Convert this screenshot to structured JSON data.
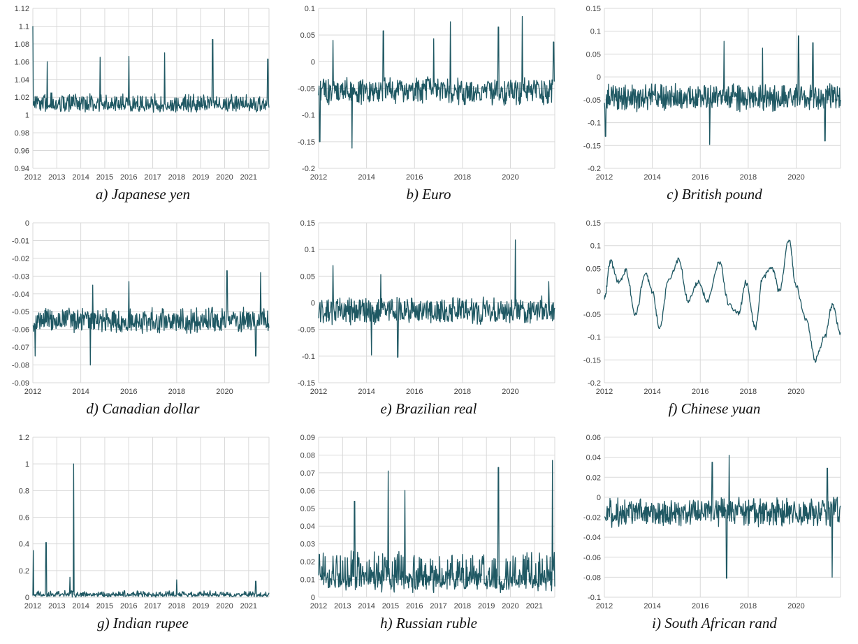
{
  "colors": {
    "series": "#1f5863",
    "grid": "#d9d9d9",
    "text": "#404040"
  },
  "chart_data": [
    {
      "type": "line",
      "caption": "a)   Japanese yen",
      "xticks": [
        "2012",
        "2013",
        "2014",
        "2015",
        "2016",
        "2017",
        "2018",
        "2019",
        "2020",
        "2021"
      ],
      "xlim": [
        2012,
        2021.85
      ],
      "ylim": [
        0.94,
        1.12
      ],
      "yticks": [
        "0.94",
        "0.96",
        "0.98",
        "1",
        "1.02",
        "1.04",
        "1.06",
        "1.08",
        "1.1",
        "1.12"
      ],
      "grid": true,
      "legend": "none",
      "approx": {
        "base": 1.015,
        "noise": 0.008,
        "floor": 1.0,
        "spikes": [
          [
            2012.0,
            1.1
          ],
          [
            2012.6,
            1.06
          ],
          [
            2014.8,
            1.065
          ],
          [
            2016.0,
            1.066
          ],
          [
            2017.5,
            1.07
          ],
          [
            2019.5,
            1.085
          ],
          [
            2021.8,
            1.063
          ]
        ]
      }
    },
    {
      "type": "line",
      "caption": "b) Euro",
      "xticks": [
        "2012",
        "2014",
        "2016",
        "2018",
        "2020"
      ],
      "xlim": [
        2012,
        2021.85
      ],
      "ylim": [
        -0.2,
        0.1
      ],
      "yticks": [
        "-0.2",
        "-0.15",
        "-0.1",
        "-0.05",
        "0",
        "0.05",
        "0.1"
      ],
      "grid": true,
      "legend": "none",
      "approx": {
        "base": -0.055,
        "noise": 0.022,
        "spikes": [
          [
            2012.05,
            -0.15
          ],
          [
            2012.6,
            0.04
          ],
          [
            2013.4,
            -0.162
          ],
          [
            2014.7,
            0.058
          ],
          [
            2016.8,
            0.043
          ],
          [
            2017.5,
            0.075
          ],
          [
            2019.5,
            0.065
          ],
          [
            2020.5,
            0.085
          ],
          [
            2021.8,
            0.037
          ]
        ]
      }
    },
    {
      "type": "line",
      "caption": "c) British pound",
      "xticks": [
        "2012",
        "2014",
        "2016",
        "2018",
        "2020"
      ],
      "xlim": [
        2012,
        2021.85
      ],
      "ylim": [
        -0.2,
        0.15
      ],
      "yticks": [
        "-0.2",
        "-0.15",
        "-0.1",
        "-0.05",
        "0",
        "0.05",
        "0.1",
        "0.15"
      ],
      "grid": true,
      "legend": "none",
      "approx": {
        "base": -0.045,
        "noise": 0.025,
        "spikes": [
          [
            2012.05,
            -0.13
          ],
          [
            2016.4,
            -0.148
          ],
          [
            2017.0,
            0.078
          ],
          [
            2018.6,
            0.063
          ],
          [
            2020.1,
            0.09
          ],
          [
            2020.7,
            0.075
          ],
          [
            2021.2,
            -0.14
          ]
        ]
      }
    },
    {
      "type": "line",
      "caption": "d) Canadian dollar",
      "xticks": [
        "2012",
        "2014",
        "2016",
        "2018",
        "2020"
      ],
      "xlim": [
        2012,
        2021.85
      ],
      "ylim": [
        -0.09,
        0
      ],
      "yticks": [
        "-0.09",
        "-0.08",
        "-0.07",
        "-0.06",
        "-0.05",
        "-0.04",
        "-0.03",
        "-0.02",
        "-0.01",
        "0"
      ],
      "grid": true,
      "legend": "none",
      "approx": {
        "base": -0.055,
        "noise": 0.006,
        "spikes": [
          [
            2012.1,
            -0.075
          ],
          [
            2014.4,
            -0.08
          ],
          [
            2014.5,
            -0.035
          ],
          [
            2016.0,
            -0.033
          ],
          [
            2020.1,
            -0.027
          ],
          [
            2021.3,
            -0.075
          ],
          [
            2021.5,
            -0.028
          ]
        ]
      }
    },
    {
      "type": "line",
      "caption": "e) Brazilian real",
      "xticks": [
        "2012",
        "2014",
        "2016",
        "2018",
        "2020"
      ],
      "xlim": [
        2012,
        2021.85
      ],
      "ylim": [
        -0.15,
        0.15
      ],
      "yticks": [
        "-0.15",
        "-0.1",
        "-0.05",
        "0",
        "0.05",
        "0.1",
        "0.15"
      ],
      "grid": true,
      "legend": "none",
      "approx": {
        "base": -0.015,
        "noise": 0.022,
        "spikes": [
          [
            2012.6,
            0.07
          ],
          [
            2014.2,
            -0.098
          ],
          [
            2014.6,
            0.053
          ],
          [
            2015.3,
            -0.102
          ],
          [
            2020.2,
            0.118
          ],
          [
            2021.6,
            0.04
          ]
        ]
      }
    },
    {
      "type": "line",
      "caption": "f) Chinese yuan",
      "xticks": [
        "2012",
        "2014",
        "2016",
        "2018",
        "2020"
      ],
      "xlim": [
        2012,
        2021.85
      ],
      "ylim": [
        -0.2,
        0.15
      ],
      "yticks": [
        "-0.2",
        "-0.15",
        "-0.1",
        "-0.05",
        "0",
        "0.05",
        "0.1",
        "0.15"
      ],
      "grid": true,
      "legend": "none",
      "approx": {
        "smooth": true,
        "anchors": [
          [
            2012.0,
            -0.015
          ],
          [
            2012.25,
            0.065
          ],
          [
            2012.6,
            0.02
          ],
          [
            2012.9,
            0.045
          ],
          [
            2013.3,
            -0.05
          ],
          [
            2013.7,
            0.04
          ],
          [
            2014.0,
            0.0
          ],
          [
            2014.3,
            -0.08
          ],
          [
            2014.7,
            0.03
          ],
          [
            2015.1,
            0.07
          ],
          [
            2015.5,
            -0.02
          ],
          [
            2015.9,
            0.02
          ],
          [
            2016.3,
            -0.02
          ],
          [
            2016.8,
            0.065
          ],
          [
            2017.2,
            -0.03
          ],
          [
            2017.6,
            -0.05
          ],
          [
            2017.9,
            0.02
          ],
          [
            2018.3,
            -0.08
          ],
          [
            2018.6,
            0.03
          ],
          [
            2019.0,
            0.05
          ],
          [
            2019.3,
            0.0
          ],
          [
            2019.7,
            0.113
          ],
          [
            2020.0,
            0.01
          ],
          [
            2020.4,
            -0.06
          ],
          [
            2020.8,
            -0.15
          ],
          [
            2021.2,
            -0.1
          ],
          [
            2021.5,
            -0.03
          ],
          [
            2021.85,
            -0.09
          ]
        ]
      }
    },
    {
      "type": "line",
      "caption": "g) Indian rupee",
      "xticks": [
        "2012",
        "2013",
        "2014",
        "2015",
        "2016",
        "2017",
        "2018",
        "2019",
        "2020",
        "2021"
      ],
      "xlim": [
        2012,
        2021.85
      ],
      "ylim": [
        0,
        1.2
      ],
      "yticks": [
        "0",
        "0.2",
        "0.4",
        "0.6",
        "0.8",
        "1",
        "1.2"
      ],
      "grid": true,
      "legend": "none",
      "approx": {
        "base": 0.025,
        "noise": 0.02,
        "floor": 0.0,
        "spikes": [
          [
            2012.02,
            0.35
          ],
          [
            2012.55,
            0.41
          ],
          [
            2013.7,
            1.0
          ],
          [
            2013.55,
            0.15
          ],
          [
            2018.0,
            0.13
          ],
          [
            2021.3,
            0.12
          ]
        ]
      }
    },
    {
      "type": "line",
      "caption": "h) Russian ruble",
      "xticks": [
        "2012",
        "2013",
        "2014",
        "2015",
        "2016",
        "2017",
        "2018",
        "2019",
        "2020",
        "2021"
      ],
      "xlim": [
        2012,
        2021.85
      ],
      "ylim": [
        0,
        0.09
      ],
      "yticks": [
        "0",
        "0.01",
        "0.02",
        "0.03",
        "0.04",
        "0.05",
        "0.06",
        "0.07",
        "0.08",
        "0.09"
      ],
      "grid": true,
      "legend": "none",
      "approx": {
        "base": 0.015,
        "noise": 0.009,
        "floor": 0.0,
        "spikes": [
          [
            2013.5,
            0.054
          ],
          [
            2014.9,
            0.071
          ],
          [
            2015.6,
            0.06
          ],
          [
            2019.5,
            0.073
          ],
          [
            2021.75,
            0.077
          ]
        ]
      }
    },
    {
      "type": "line",
      "caption": "i) South African rand",
      "xticks": [
        "2012",
        "2014",
        "2016",
        "2018",
        "2020"
      ],
      "xlim": [
        2012,
        2021.85
      ],
      "ylim": [
        -0.1,
        0.06
      ],
      "yticks": [
        "-0.1",
        "-0.08",
        "-0.06",
        "-0.04",
        "-0.02",
        "0",
        "0.02",
        "0.04",
        "0.06"
      ],
      "grid": true,
      "legend": "none",
      "approx": {
        "base": -0.015,
        "noise": 0.012,
        "spikes": [
          [
            2016.5,
            0.035
          ],
          [
            2017.1,
            -0.081
          ],
          [
            2017.2,
            0.042
          ],
          [
            2021.5,
            -0.08
          ],
          [
            2021.3,
            0.029
          ]
        ]
      }
    }
  ]
}
